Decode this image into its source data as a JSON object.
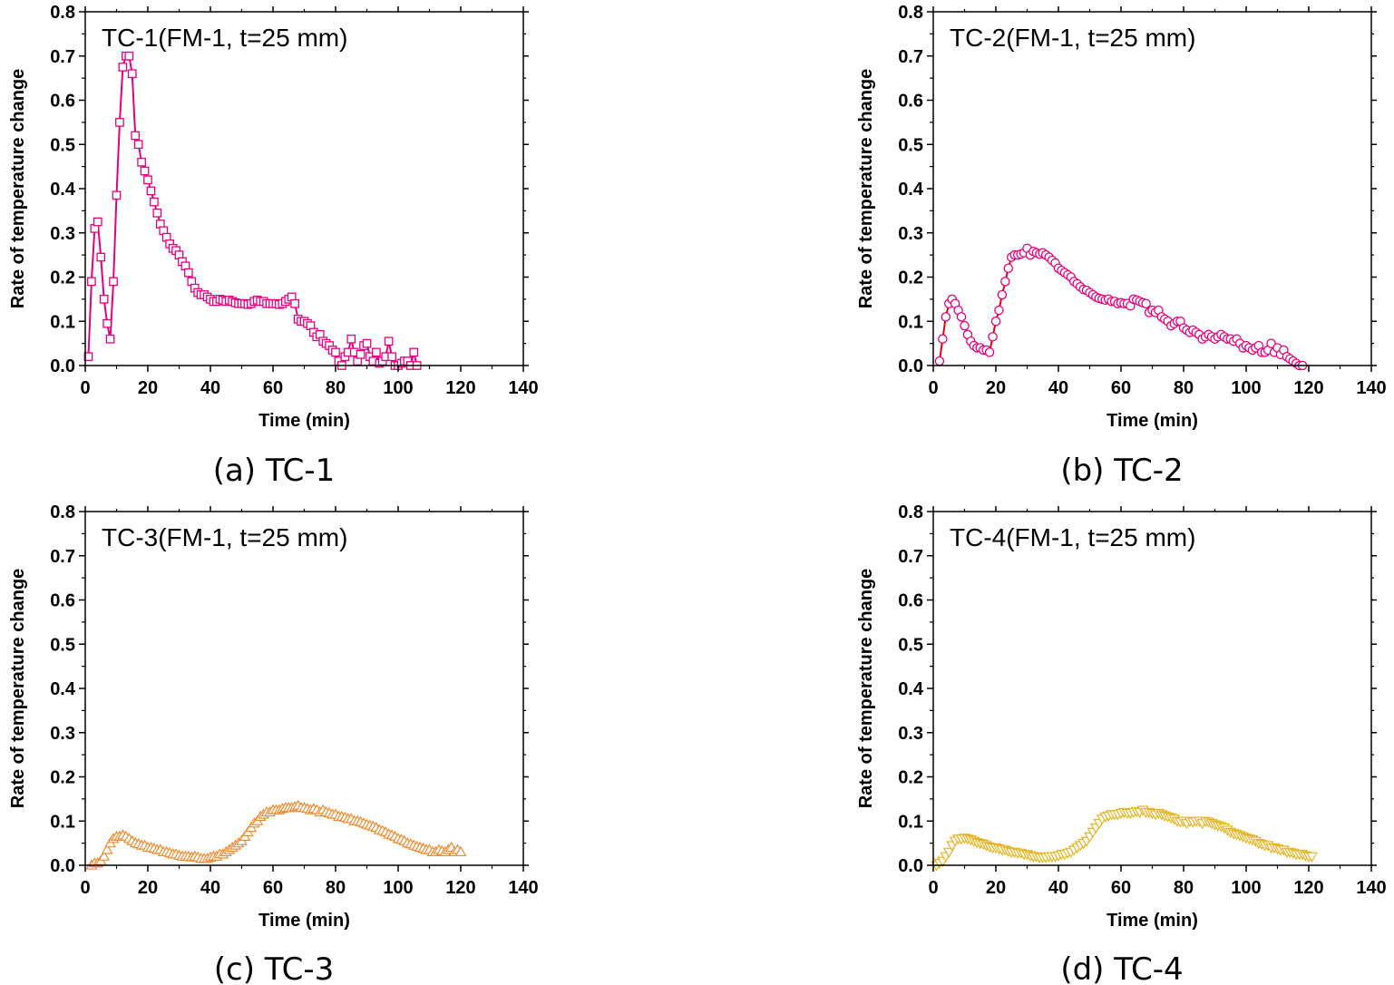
{
  "chart_data": [
    {
      "type": "line",
      "title": "TC-1(FM-1, t=25 mm)",
      "caption": "(a) TC-1",
      "xlabel": "Time (min)",
      "ylabel": "Rate of temperature change",
      "xlim": [
        0,
        140
      ],
      "ylim": [
        0,
        0.8
      ],
      "xticks": [
        "0",
        "20",
        "40",
        "60",
        "80",
        "100",
        "120",
        "140"
      ],
      "yticks": [
        "0.0",
        "0.1",
        "0.2",
        "0.3",
        "0.4",
        "0.5",
        "0.6",
        "0.7",
        "0.8"
      ],
      "grid": false,
      "series": [
        {
          "color": "#e5007f",
          "marker": "square",
          "x": [
            1,
            2,
            3,
            4,
            5,
            6,
            7,
            8,
            9,
            10,
            11,
            12,
            13,
            14,
            15,
            16,
            17,
            18,
            19,
            20,
            21,
            22,
            23,
            24,
            25,
            26,
            27,
            28,
            29,
            30,
            31,
            32,
            33,
            34,
            35,
            36,
            37,
            38,
            39,
            40,
            41,
            42,
            43,
            44,
            45,
            46,
            47,
            48,
            49,
            50,
            51,
            52,
            53,
            54,
            55,
            56,
            57,
            58,
            59,
            60,
            61,
            62,
            63,
            64,
            65,
            66,
            67,
            68,
            69,
            70,
            71,
            72,
            73,
            74,
            75,
            76,
            77,
            78,
            79,
            80,
            81,
            82,
            83,
            84,
            85,
            86,
            87,
            88,
            89,
            90,
            91,
            92,
            93,
            94,
            95,
            96,
            97,
            98,
            99,
            100,
            101,
            102,
            103,
            104,
            105,
            106
          ],
          "y": [
            0.02,
            0.19,
            0.31,
            0.325,
            0.245,
            0.15,
            0.095,
            0.06,
            0.19,
            0.385,
            0.55,
            0.675,
            0.7,
            0.7,
            0.66,
            0.52,
            0.5,
            0.46,
            0.44,
            0.42,
            0.395,
            0.37,
            0.345,
            0.32,
            0.305,
            0.29,
            0.275,
            0.265,
            0.26,
            0.25,
            0.235,
            0.225,
            0.21,
            0.19,
            0.175,
            0.165,
            0.16,
            0.16,
            0.155,
            0.15,
            0.145,
            0.145,
            0.15,
            0.148,
            0.145,
            0.148,
            0.145,
            0.142,
            0.14,
            0.14,
            0.14,
            0.138,
            0.14,
            0.145,
            0.148,
            0.145,
            0.145,
            0.14,
            0.14,
            0.14,
            0.14,
            0.138,
            0.14,
            0.145,
            0.15,
            0.155,
            0.14,
            0.105,
            0.1,
            0.1,
            0.095,
            0.09,
            0.075,
            0.065,
            0.07,
            0.055,
            0.05,
            0.045,
            0.035,
            0.03,
            0.01,
            0.0,
            0.02,
            0.03,
            0.06,
            0.03,
            0.01,
            0.025,
            0.045,
            0.05,
            0.02,
            0.01,
            0.03,
            0.005,
            0.01,
            0.02,
            0.055,
            0.02,
            0.0,
            0.0,
            0.005,
            0.01,
            0.01,
            0.0,
            0.03,
            0.0
          ]
        }
      ]
    },
    {
      "type": "line",
      "title": "TC-2(FM-1, t=25 mm)",
      "caption": "(b) TC-2",
      "xlabel": "Time (min)",
      "ylabel": "Rate of temperature change",
      "xlim": [
        0,
        140
      ],
      "ylim": [
        0,
        0.8
      ],
      "xticks": [
        "0",
        "20",
        "40",
        "60",
        "80",
        "100",
        "120",
        "140"
      ],
      "yticks": [
        "0.0",
        "0.1",
        "0.2",
        "0.3",
        "0.4",
        "0.5",
        "0.6",
        "0.7",
        "0.8"
      ],
      "grid": false,
      "series": [
        {
          "color": "#e5007f",
          "line_color": "#e60012",
          "marker": "circle",
          "x": [
            2,
            3,
            4,
            5,
            6,
            7,
            8,
            9,
            10,
            11,
            12,
            13,
            14,
            15,
            16,
            17,
            18,
            19,
            20,
            21,
            22,
            23,
            24,
            25,
            26,
            27,
            28,
            29,
            30,
            31,
            32,
            33,
            34,
            35,
            36,
            37,
            38,
            39,
            40,
            41,
            42,
            43,
            44,
            45,
            46,
            47,
            48,
            49,
            50,
            51,
            52,
            53,
            54,
            55,
            56,
            57,
            58,
            59,
            60,
            61,
            62,
            63,
            64,
            65,
            66,
            67,
            68,
            69,
            70,
            71,
            72,
            73,
            74,
            75,
            76,
            77,
            78,
            79,
            80,
            81,
            82,
            83,
            84,
            85,
            86,
            87,
            88,
            89,
            90,
            91,
            92,
            93,
            94,
            95,
            96,
            97,
            98,
            99,
            100,
            101,
            102,
            103,
            104,
            105,
            106,
            107,
            108,
            109,
            110,
            111,
            112,
            113,
            114,
            115,
            116,
            117,
            118
          ],
          "y": [
            0.01,
            0.06,
            0.11,
            0.14,
            0.15,
            0.14,
            0.125,
            0.11,
            0.09,
            0.07,
            0.055,
            0.045,
            0.04,
            0.04,
            0.035,
            0.035,
            0.03,
            0.065,
            0.1,
            0.125,
            0.16,
            0.19,
            0.22,
            0.245,
            0.25,
            0.25,
            0.252,
            0.255,
            0.265,
            0.25,
            0.258,
            0.255,
            0.252,
            0.255,
            0.25,
            0.245,
            0.238,
            0.232,
            0.22,
            0.215,
            0.21,
            0.205,
            0.2,
            0.19,
            0.185,
            0.178,
            0.172,
            0.17,
            0.165,
            0.16,
            0.155,
            0.152,
            0.15,
            0.148,
            0.15,
            0.145,
            0.145,
            0.14,
            0.142,
            0.14,
            0.14,
            0.135,
            0.15,
            0.148,
            0.145,
            0.142,
            0.14,
            0.12,
            0.125,
            0.12,
            0.125,
            0.11,
            0.105,
            0.1,
            0.09,
            0.095,
            0.1,
            0.1,
            0.085,
            0.08,
            0.075,
            0.08,
            0.075,
            0.07,
            0.06,
            0.065,
            0.07,
            0.065,
            0.06,
            0.065,
            0.07,
            0.065,
            0.06,
            0.06,
            0.055,
            0.06,
            0.05,
            0.04,
            0.045,
            0.04,
            0.035,
            0.04,
            0.045,
            0.03,
            0.03,
            0.035,
            0.05,
            0.03,
            0.04,
            0.025,
            0.035,
            0.02,
            0.015,
            0.01,
            0.005,
            0.0,
            0.0
          ]
        }
      ]
    },
    {
      "type": "line",
      "title": "TC-3(FM-1, t=25 mm)",
      "caption": "(c) TC-3",
      "xlabel": "Time (min)",
      "ylabel": "Rate of temperature change",
      "xlim": [
        0,
        140
      ],
      "ylim": [
        0,
        0.8
      ],
      "xticks": [
        "0",
        "20",
        "40",
        "60",
        "80",
        "100",
        "120",
        "140"
      ],
      "yticks": [
        "0.0",
        "0.1",
        "0.2",
        "0.3",
        "0.4",
        "0.5",
        "0.6",
        "0.7",
        "0.8"
      ],
      "grid": false,
      "series": [
        {
          "color": "#f08c30",
          "marker": "triangle-up",
          "x": [
            2,
            3,
            4,
            5,
            6,
            7,
            8,
            9,
            10,
            11,
            12,
            13,
            14,
            15,
            16,
            17,
            18,
            19,
            20,
            21,
            22,
            23,
            24,
            25,
            26,
            27,
            28,
            29,
            30,
            31,
            32,
            33,
            34,
            35,
            36,
            37,
            38,
            39,
            40,
            41,
            42,
            43,
            44,
            45,
            46,
            47,
            48,
            49,
            50,
            51,
            52,
            53,
            54,
            55,
            56,
            57,
            58,
            59,
            60,
            61,
            62,
            63,
            64,
            65,
            66,
            67,
            68,
            69,
            70,
            71,
            72,
            73,
            74,
            75,
            76,
            77,
            78,
            79,
            80,
            81,
            82,
            83,
            84,
            85,
            86,
            87,
            88,
            89,
            90,
            91,
            92,
            93,
            94,
            95,
            96,
            97,
            98,
            99,
            100,
            101,
            102,
            103,
            104,
            105,
            106,
            107,
            108,
            109,
            110,
            111,
            112,
            113,
            114,
            115,
            116,
            117,
            118,
            119,
            120
          ],
          "y": [
            0.0,
            0.005,
            0.005,
            0.01,
            0.02,
            0.035,
            0.05,
            0.06,
            0.065,
            0.065,
            0.068,
            0.065,
            0.06,
            0.055,
            0.05,
            0.048,
            0.045,
            0.045,
            0.04,
            0.04,
            0.038,
            0.035,
            0.035,
            0.03,
            0.03,
            0.028,
            0.025,
            0.025,
            0.022,
            0.02,
            0.02,
            0.02,
            0.018,
            0.02,
            0.018,
            0.015,
            0.015,
            0.015,
            0.018,
            0.02,
            0.02,
            0.025,
            0.025,
            0.03,
            0.035,
            0.04,
            0.045,
            0.05,
            0.055,
            0.065,
            0.075,
            0.085,
            0.095,
            0.1,
            0.11,
            0.115,
            0.12,
            0.12,
            0.125,
            0.125,
            0.125,
            0.128,
            0.13,
            0.13,
            0.13,
            0.132,
            0.135,
            0.13,
            0.13,
            0.128,
            0.125,
            0.128,
            0.125,
            0.12,
            0.125,
            0.12,
            0.118,
            0.115,
            0.115,
            0.11,
            0.11,
            0.108,
            0.105,
            0.105,
            0.1,
            0.1,
            0.098,
            0.095,
            0.092,
            0.09,
            0.088,
            0.085,
            0.08,
            0.078,
            0.075,
            0.07,
            0.068,
            0.065,
            0.06,
            0.058,
            0.055,
            0.05,
            0.048,
            0.045,
            0.042,
            0.04,
            0.038,
            0.035,
            0.035,
            0.03,
            0.03,
            0.035,
            0.032,
            0.03,
            0.035,
            0.04,
            0.03,
            0.035,
            0.03
          ]
        }
      ]
    },
    {
      "type": "line",
      "title": "TC-4(FM-1, t=25 mm)",
      "caption": "(d) TC-4",
      "xlabel": "Time (min)",
      "ylabel": "Rate of temperature change",
      "xlim": [
        0,
        140
      ],
      "ylim": [
        0,
        0.8
      ],
      "xticks": [
        "0",
        "20",
        "40",
        "60",
        "80",
        "100",
        "120",
        "140"
      ],
      "yticks": [
        "0.0",
        "0.1",
        "0.2",
        "0.3",
        "0.4",
        "0.5",
        "0.6",
        "0.7",
        "0.8"
      ],
      "grid": false,
      "series": [
        {
          "color": "#e6b422",
          "marker": "triangle-down",
          "x": [
            1,
            2,
            3,
            4,
            5,
            6,
            7,
            8,
            9,
            10,
            11,
            12,
            13,
            14,
            15,
            16,
            17,
            18,
            19,
            20,
            21,
            22,
            23,
            24,
            25,
            26,
            27,
            28,
            29,
            30,
            31,
            32,
            33,
            34,
            35,
            36,
            37,
            38,
            39,
            40,
            41,
            42,
            43,
            44,
            45,
            46,
            47,
            48,
            49,
            50,
            51,
            52,
            53,
            54,
            55,
            56,
            57,
            58,
            59,
            60,
            61,
            62,
            63,
            64,
            65,
            66,
            67,
            68,
            69,
            70,
            71,
            72,
            73,
            74,
            75,
            76,
            77,
            78,
            79,
            80,
            81,
            82,
            83,
            84,
            85,
            86,
            87,
            88,
            89,
            90,
            91,
            92,
            93,
            94,
            95,
            96,
            97,
            98,
            99,
            100,
            101,
            102,
            103,
            104,
            105,
            106,
            107,
            108,
            109,
            110,
            111,
            112,
            113,
            114,
            115,
            116,
            117,
            118,
            119,
            120,
            121
          ],
          "y": [
            0.0,
            0.005,
            0.01,
            0.02,
            0.03,
            0.045,
            0.055,
            0.06,
            0.06,
            0.062,
            0.06,
            0.058,
            0.055,
            0.052,
            0.05,
            0.048,
            0.045,
            0.042,
            0.04,
            0.04,
            0.038,
            0.035,
            0.035,
            0.032,
            0.03,
            0.03,
            0.028,
            0.028,
            0.025,
            0.025,
            0.022,
            0.02,
            0.02,
            0.018,
            0.018,
            0.018,
            0.02,
            0.02,
            0.02,
            0.022,
            0.025,
            0.025,
            0.028,
            0.03,
            0.035,
            0.04,
            0.045,
            0.05,
            0.055,
            0.065,
            0.075,
            0.085,
            0.095,
            0.105,
            0.11,
            0.112,
            0.115,
            0.115,
            0.115,
            0.118,
            0.12,
            0.118,
            0.118,
            0.12,
            0.122,
            0.12,
            0.125,
            0.12,
            0.12,
            0.118,
            0.115,
            0.118,
            0.115,
            0.112,
            0.11,
            0.108,
            0.105,
            0.1,
            0.098,
            0.1,
            0.095,
            0.1,
            0.098,
            0.1,
            0.1,
            0.095,
            0.1,
            0.098,
            0.095,
            0.092,
            0.09,
            0.088,
            0.085,
            0.08,
            0.075,
            0.072,
            0.07,
            0.068,
            0.065,
            0.062,
            0.06,
            0.058,
            0.055,
            0.05,
            0.048,
            0.045,
            0.045,
            0.04,
            0.04,
            0.038,
            0.035,
            0.035,
            0.03,
            0.03,
            0.028,
            0.025,
            0.025,
            0.025,
            0.022,
            0.02,
            0.02
          ]
        }
      ]
    }
  ]
}
